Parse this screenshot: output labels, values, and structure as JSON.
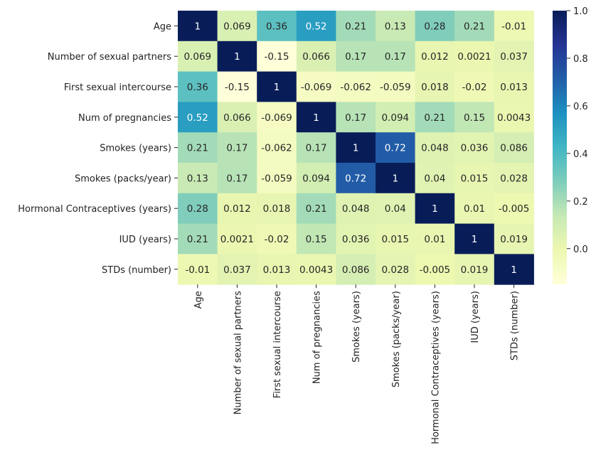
{
  "chart_data": {
    "type": "heatmap",
    "title": "",
    "xlabel": "",
    "ylabel": "",
    "rows": [
      "Age",
      "Number of sexual partners",
      "First sexual intercourse",
      "Num of pregnancies",
      "Smokes (years)",
      "Smokes (packs/year)",
      "Hormonal Contraceptives (years)",
      "IUD (years)",
      "STDs (number)"
    ],
    "columns": [
      "Age",
      "Number of sexual partners",
      "First sexual intercourse",
      "Num of pregnancies",
      "Smokes (years)",
      "Smokes (packs/year)",
      "Hormonal Contraceptives (years)",
      "IUD (years)",
      "STDs (number)"
    ],
    "values": [
      [
        1,
        0.069,
        0.36,
        0.52,
        0.21,
        0.13,
        0.28,
        0.21,
        -0.01
      ],
      [
        0.069,
        1,
        -0.15,
        0.066,
        0.17,
        0.17,
        0.012,
        0.0021,
        0.037
      ],
      [
        0.36,
        -0.15,
        1,
        -0.069,
        -0.062,
        -0.059,
        0.018,
        -0.02,
        0.013
      ],
      [
        0.52,
        0.066,
        -0.069,
        1,
        0.17,
        0.094,
        0.21,
        0.15,
        0.0043
      ],
      [
        0.21,
        0.17,
        -0.062,
        0.17,
        1,
        0.72,
        0.048,
        0.036,
        0.086
      ],
      [
        0.13,
        0.17,
        -0.059,
        0.094,
        0.72,
        1,
        0.04,
        0.015,
        0.028
      ],
      [
        0.28,
        0.012,
        0.018,
        0.21,
        0.048,
        0.04,
        1,
        0.01,
        -0.005
      ],
      [
        0.21,
        0.0021,
        -0.02,
        0.15,
        0.036,
        0.015,
        0.01,
        1,
        0.019
      ],
      [
        -0.01,
        0.037,
        0.013,
        0.0043,
        0.086,
        0.028,
        -0.005,
        0.019,
        1
      ]
    ],
    "labels": [
      [
        "1",
        "0.069",
        "0.36",
        "0.52",
        "0.21",
        "0.13",
        "0.28",
        "0.21",
        "-0.01"
      ],
      [
        "0.069",
        "1",
        "-0.15",
        "0.066",
        "0.17",
        "0.17",
        "0.012",
        "0.0021",
        "0.037"
      ],
      [
        "0.36",
        "-0.15",
        "1",
        "-0.069",
        "-0.062",
        "-0.059",
        "0.018",
        "-0.02",
        "0.013"
      ],
      [
        "0.52",
        "0.066",
        "-0.069",
        "1",
        "0.17",
        "0.094",
        "0.21",
        "0.15",
        "0.0043"
      ],
      [
        "0.21",
        "0.17",
        "-0.062",
        "0.17",
        "1",
        "0.72",
        "0.048",
        "0.036",
        "0.086"
      ],
      [
        "0.13",
        "0.17",
        "-0.059",
        "0.094",
        "0.72",
        "1",
        "0.04",
        "0.015",
        "0.028"
      ],
      [
        "0.28",
        "0.012",
        "0.018",
        "0.21",
        "0.048",
        "0.04",
        "1",
        "0.01",
        "-0.005"
      ],
      [
        "0.21",
        "0.0021",
        "-0.02",
        "0.15",
        "0.036",
        "0.015",
        "0.01",
        "1",
        "0.019"
      ],
      [
        "-0.01",
        "0.037",
        "0.013",
        "0.0043",
        "0.086",
        "0.028",
        "-0.005",
        "0.019",
        "1"
      ]
    ],
    "vmin": -0.15,
    "vmax": 1,
    "colormap": "YlGnBu",
    "colorbar": {
      "ticks": [
        0.0,
        0.2,
        0.4,
        0.6,
        0.8,
        1.0
      ],
      "tick_labels": [
        "0.0",
        "0.2",
        "0.4",
        "0.6",
        "0.8",
        "1.0"
      ]
    },
    "colors": {
      "stops": [
        "#ffffd9",
        "#edf8b1",
        "#c7e9b4",
        "#7fcdbb",
        "#41b6c4",
        "#1d91c0",
        "#225ea8",
        "#253494",
        "#081d58"
      ],
      "text_dark": "#262626",
      "text_light": "#ffffff"
    }
  }
}
